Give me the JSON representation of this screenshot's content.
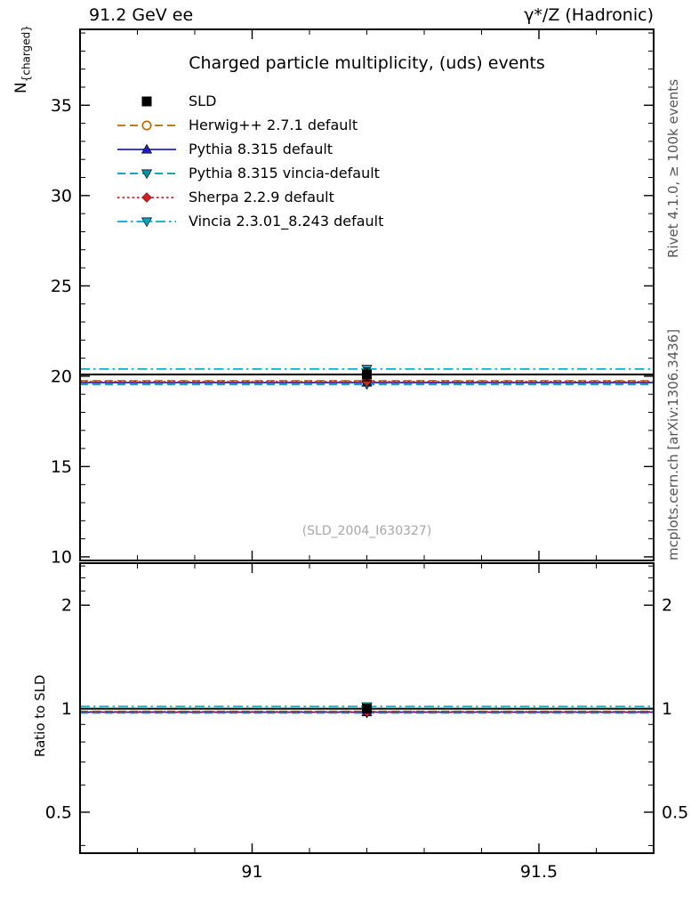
{
  "header": {
    "left": "91.2 GeV ee",
    "right": "γ*/Z (Hadronic)"
  },
  "main_panel": {
    "ylabel_base": "N",
    "ylabel_sub": "{charged}",
    "watermark": "(SLD_2004_I630327)"
  },
  "side_labels": {
    "top_right": "Rivet 4.1.0, ≥ 100k events",
    "bottom_right": "mcplots.cern.ch [arXiv:1306.3436]"
  },
  "chart_data": [
    {
      "type": "line",
      "title": "Charged particle multiplicity, (uds) events",
      "xlabel": "",
      "ylabel": "N_{charged}",
      "xlim": [
        90.7,
        91.7
      ],
      "ylim": [
        9.8,
        39.2
      ],
      "yscale": "linear",
      "grid": false,
      "legend_position": "upper-left",
      "xticks": [
        91,
        91.5
      ],
      "xtick_labels": [
        "91",
        "91.5"
      ],
      "x_minor_step": 0.1,
      "yticks": [
        10,
        15,
        20,
        25,
        30,
        35
      ],
      "ytick_labels": [
        "10",
        "15",
        "20",
        "25",
        "30",
        "35"
      ],
      "y_minor_step": 1,
      "bin_center": 91.2,
      "series": [
        {
          "name": "SLD",
          "role": "data",
          "color": "#000000",
          "line": "solid",
          "marker": "square",
          "x": [
            90.7,
            91.7
          ],
          "y": [
            20.1,
            20.1
          ],
          "yerr": 0.35
        },
        {
          "name": "Herwig++ 2.7.1 default",
          "role": "mc",
          "color": "#b36b00",
          "line": "dashed",
          "marker": "circle-open",
          "x": [
            90.7,
            91.7
          ],
          "y": [
            19.75,
            19.75
          ]
        },
        {
          "name": "Pythia 8.315 default",
          "role": "mc",
          "color": "#2020c0",
          "line": "solid",
          "marker": "triangle-up",
          "x": [
            90.7,
            91.7
          ],
          "y": [
            19.65,
            19.65
          ]
        },
        {
          "name": "Pythia 8.315 vincia-default",
          "role": "mc",
          "color": "#0095a8",
          "line": "dashed",
          "marker": "triangle-down",
          "x": [
            90.7,
            91.7
          ],
          "y": [
            19.55,
            19.55
          ]
        },
        {
          "name": "Sherpa 2.2.9 default",
          "role": "mc",
          "color": "#d42020",
          "line": "dotted",
          "marker": "diamond",
          "x": [
            90.7,
            91.7
          ],
          "y": [
            19.7,
            19.7
          ]
        },
        {
          "name": "Vincia 2.3.01_8.243 default",
          "role": "mc",
          "color": "#00a8c8",
          "line": "dashdot",
          "marker": "triangle-down",
          "x": [
            90.7,
            91.7
          ],
          "y": [
            20.4,
            20.4
          ]
        }
      ]
    },
    {
      "type": "line",
      "title": "",
      "xlabel": "",
      "ylabel": "Ratio to SLD",
      "xlim": [
        90.7,
        91.7
      ],
      "ylim": [
        0.38,
        2.65
      ],
      "yscale": "log",
      "xticks": [
        91,
        91.5
      ],
      "xtick_labels": [
        "91",
        "91.5"
      ],
      "x_minor_step": 0.1,
      "yticks": [
        0.5,
        1,
        2
      ],
      "ytick_labels": [
        "0.5",
        "1",
        "2"
      ],
      "y_minor_ticks": [
        0.4,
        0.6,
        0.7,
        0.8,
        0.9,
        2.2,
        2.4,
        2.6
      ],
      "bin_center": 91.2,
      "series": [
        {
          "name": "SLD",
          "role": "data",
          "color": "#000000",
          "line": "solid",
          "marker": "square",
          "x": [
            90.7,
            91.7
          ],
          "y": [
            1.0,
            1.0
          ],
          "yerr": 0.02
        },
        {
          "name": "Herwig++ 2.7.1 default",
          "role": "mc",
          "color": "#b36b00",
          "line": "dashed",
          "marker": "circle-open",
          "x": [
            90.7,
            91.7
          ],
          "y": [
            0.982,
            0.982
          ]
        },
        {
          "name": "Pythia 8.315 default",
          "role": "mc",
          "color": "#2020c0",
          "line": "solid",
          "marker": "triangle-up",
          "x": [
            90.7,
            91.7
          ],
          "y": [
            0.977,
            0.977
          ]
        },
        {
          "name": "Pythia 8.315 vincia-default",
          "role": "mc",
          "color": "#0095a8",
          "line": "dashed",
          "marker": "triangle-down",
          "x": [
            90.7,
            91.7
          ],
          "y": [
            0.972,
            0.972
          ]
        },
        {
          "name": "Sherpa 2.2.9 default",
          "role": "mc",
          "color": "#d42020",
          "line": "dotted",
          "marker": "diamond",
          "x": [
            90.7,
            91.7
          ],
          "y": [
            0.98,
            0.98
          ]
        },
        {
          "name": "Vincia 2.3.01_8.243 default",
          "role": "mc",
          "color": "#00a8c8",
          "line": "dashdot",
          "marker": "triangle-down",
          "x": [
            90.7,
            91.7
          ],
          "y": [
            1.015,
            1.015
          ]
        }
      ]
    }
  ]
}
